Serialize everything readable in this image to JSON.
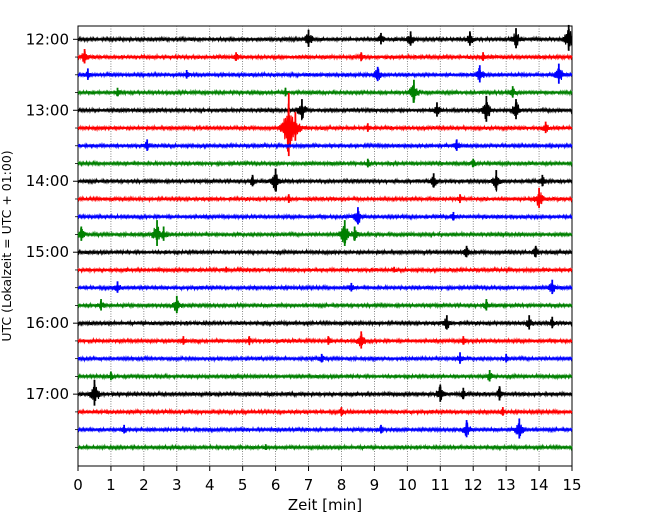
{
  "chart_data": {
    "type": "line",
    "title": "",
    "xlabel": "Zeit  [min]",
    "ylabel": "UTC (Lokalzeit = UTC + 01:00)",
    "xlim": [
      0,
      15
    ],
    "x_ticks": [
      "0",
      "1",
      "2",
      "3",
      "4",
      "5",
      "6",
      "7",
      "8",
      "9",
      "10",
      "11",
      "12",
      "13",
      "14",
      "15"
    ],
    "y_ticks": [
      "12:00",
      "13:00",
      "14:00",
      "15:00",
      "16:00",
      "17:00"
    ],
    "grid": "vertical dotted at each minute",
    "colors": [
      "#000000",
      "#ff0000",
      "#0000ff",
      "#008000"
    ],
    "traces": [
      {
        "start": "12:00",
        "color": "#000000",
        "events": [
          [
            7.0,
            0.6
          ],
          [
            9.2,
            0.4
          ],
          [
            10.1,
            0.5
          ],
          [
            11.9,
            0.5
          ],
          [
            13.3,
            0.7
          ],
          [
            14.9,
            0.9
          ]
        ]
      },
      {
        "start": "12:15",
        "color": "#ff0000",
        "events": [
          [
            0.2,
            0.5
          ],
          [
            4.8,
            0.3
          ],
          [
            8.6,
            0.3
          ],
          [
            12.3,
            0.3
          ]
        ]
      },
      {
        "start": "12:30",
        "color": "#0000ff",
        "events": [
          [
            0.3,
            0.4
          ],
          [
            3.3,
            0.3
          ],
          [
            9.1,
            0.5
          ],
          [
            12.2,
            0.6
          ],
          [
            14.6,
            0.7
          ]
        ]
      },
      {
        "start": "12:45",
        "color": "#008000",
        "events": [
          [
            1.2,
            0.3
          ],
          [
            6.3,
            0.3
          ],
          [
            10.2,
            0.8
          ],
          [
            13.2,
            0.4
          ]
        ]
      },
      {
        "start": "13:00",
        "color": "#000000",
        "events": [
          [
            6.8,
            0.7
          ],
          [
            10.9,
            0.5
          ],
          [
            12.4,
            0.9
          ],
          [
            13.3,
            0.7
          ]
        ]
      },
      {
        "start": "13:15",
        "color": "#ff0000",
        "events": [
          [
            6.4,
            2.2
          ],
          [
            6.6,
            1.0
          ],
          [
            8.8,
            0.3
          ],
          [
            14.2,
            0.4
          ]
        ]
      },
      {
        "start": "13:30",
        "color": "#0000ff",
        "events": [
          [
            2.1,
            0.4
          ],
          [
            11.5,
            0.4
          ]
        ]
      },
      {
        "start": "13:45",
        "color": "#008000",
        "events": [
          [
            8.8,
            0.3
          ],
          [
            12.0,
            0.3
          ]
        ]
      },
      {
        "start": "14:00",
        "color": "#000000",
        "events": [
          [
            5.3,
            0.4
          ],
          [
            6.0,
            0.8
          ],
          [
            10.8,
            0.5
          ],
          [
            12.7,
            0.7
          ],
          [
            14.1,
            0.4
          ]
        ]
      },
      {
        "start": "14:15",
        "color": "#ff0000",
        "events": [
          [
            6.4,
            0.3
          ],
          [
            11.6,
            0.3
          ],
          [
            14.0,
            0.7
          ]
        ]
      },
      {
        "start": "14:30",
        "color": "#0000ff",
        "events": [
          [
            8.5,
            0.6
          ],
          [
            11.4,
            0.3
          ]
        ]
      },
      {
        "start": "14:45",
        "color": "#008000",
        "events": [
          [
            0.1,
            0.5
          ],
          [
            2.4,
            0.9
          ],
          [
            2.6,
            0.5
          ],
          [
            8.1,
            0.9
          ],
          [
            8.4,
            0.5
          ]
        ]
      },
      {
        "start": "15:00",
        "color": "#000000",
        "events": [
          [
            11.8,
            0.4
          ],
          [
            13.9,
            0.4
          ]
        ]
      },
      {
        "start": "15:15",
        "color": "#ff0000",
        "events": [
          [
            4.5,
            0.2
          ],
          [
            9.6,
            0.2
          ]
        ]
      },
      {
        "start": "15:30",
        "color": "#0000ff",
        "events": [
          [
            1.2,
            0.4
          ],
          [
            8.3,
            0.3
          ],
          [
            14.4,
            0.5
          ]
        ]
      },
      {
        "start": "15:45",
        "color": "#008000",
        "events": [
          [
            0.7,
            0.4
          ],
          [
            3.0,
            0.6
          ],
          [
            12.4,
            0.4
          ]
        ]
      },
      {
        "start": "16:00",
        "color": "#000000",
        "events": [
          [
            11.2,
            0.5
          ],
          [
            13.7,
            0.5
          ],
          [
            14.4,
            0.4
          ]
        ]
      },
      {
        "start": "16:15",
        "color": "#ff0000",
        "events": [
          [
            3.2,
            0.3
          ],
          [
            5.2,
            0.3
          ],
          [
            7.6,
            0.3
          ],
          [
            8.6,
            0.6
          ],
          [
            11.7,
            0.3
          ]
        ]
      },
      {
        "start": "16:30",
        "color": "#0000ff",
        "events": [
          [
            7.4,
            0.3
          ],
          [
            11.6,
            0.4
          ],
          [
            13.0,
            0.3
          ]
        ]
      },
      {
        "start": "16:45",
        "color": "#008000",
        "events": [
          [
            1.0,
            0.3
          ],
          [
            12.5,
            0.4
          ]
        ]
      },
      {
        "start": "17:00",
        "color": "#000000",
        "events": [
          [
            0.5,
            0.9
          ],
          [
            11.0,
            0.6
          ],
          [
            11.7,
            0.4
          ],
          [
            12.8,
            0.5
          ]
        ]
      },
      {
        "start": "17:15",
        "color": "#ff0000",
        "events": [
          [
            8.0,
            0.3
          ],
          [
            12.9,
            0.3
          ]
        ]
      },
      {
        "start": "17:30",
        "color": "#0000ff",
        "events": [
          [
            1.4,
            0.3
          ],
          [
            9.2,
            0.3
          ],
          [
            11.8,
            0.6
          ],
          [
            13.4,
            0.7
          ]
        ]
      },
      {
        "start": "17:45",
        "color": "#008000",
        "events": [
          [
            5.7,
            0.2
          ]
        ]
      }
    ]
  }
}
